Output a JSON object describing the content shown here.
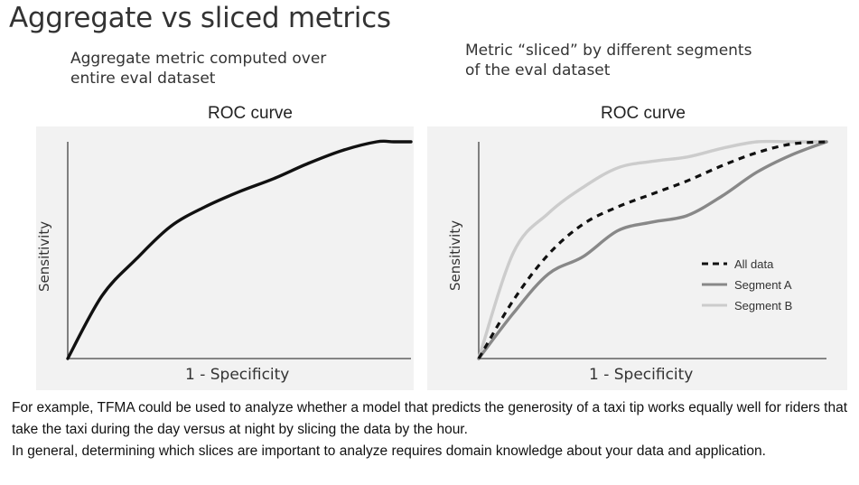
{
  "title": "Aggregate vs sliced metrics",
  "chart_data": [
    {
      "type": "line",
      "subtitle_lines": [
        "Aggregate metric computed over",
        "entire eval dataset"
      ],
      "title": "ROC curve",
      "xlabel": "1 - Specificity",
      "ylabel": "Sensitivity",
      "xlim": [
        0,
        1
      ],
      "ylim": [
        0,
        1
      ],
      "series": [
        {
          "color": "#111111",
          "dash": "solid",
          "x": [
            0,
            0.1,
            0.2,
            0.3,
            0.4,
            0.5,
            0.6,
            0.7,
            0.8,
            0.9,
            0.95,
            1.0
          ],
          "y": [
            0,
            0.29,
            0.46,
            0.61,
            0.7,
            0.77,
            0.83,
            0.9,
            0.96,
            1.0,
            1.0,
            1.0
          ]
        }
      ]
    },
    {
      "type": "line",
      "subtitle_lines": [
        "Metric “sliced” by different segments",
        "of the eval dataset"
      ],
      "title": "ROC curve",
      "xlabel": "1 - Specificity",
      "ylabel": "Sensitivity",
      "xlim": [
        0,
        1
      ],
      "ylim": [
        0,
        1
      ],
      "legend": "right",
      "series": [
        {
          "name": "All data",
          "color": "#111111",
          "dash": "dashed",
          "x": [
            0,
            0.1,
            0.2,
            0.3,
            0.4,
            0.5,
            0.6,
            0.7,
            0.8,
            0.9,
            1.0
          ],
          "y": [
            0,
            0.27,
            0.48,
            0.62,
            0.7,
            0.76,
            0.82,
            0.89,
            0.95,
            0.99,
            1.0
          ]
        },
        {
          "name": "Segment A",
          "color": "#888888",
          "dash": "solid",
          "x": [
            0,
            0.1,
            0.2,
            0.3,
            0.4,
            0.5,
            0.6,
            0.7,
            0.8,
            0.9,
            1.0
          ],
          "y": [
            0,
            0.21,
            0.39,
            0.47,
            0.59,
            0.63,
            0.66,
            0.75,
            0.86,
            0.94,
            1.0
          ]
        },
        {
          "name": "Segment B",
          "color": "#cccccc",
          "dash": "solid",
          "x": [
            0,
            0.1,
            0.2,
            0.3,
            0.4,
            0.5,
            0.6,
            0.7,
            0.8,
            0.9,
            1.0
          ],
          "y": [
            0,
            0.49,
            0.67,
            0.79,
            0.88,
            0.91,
            0.93,
            0.97,
            1.0,
            1.0,
            1.0
          ]
        }
      ]
    }
  ],
  "caption": [
    "For example, TFMA could be used to analyze whether a model that predicts the generosity of a taxi tip works equally well for riders that take the taxi during the day versus at night by slicing the data by the hour.",
    "In general, determining which slices are important to analyze requires domain knowledge about your data and application."
  ]
}
